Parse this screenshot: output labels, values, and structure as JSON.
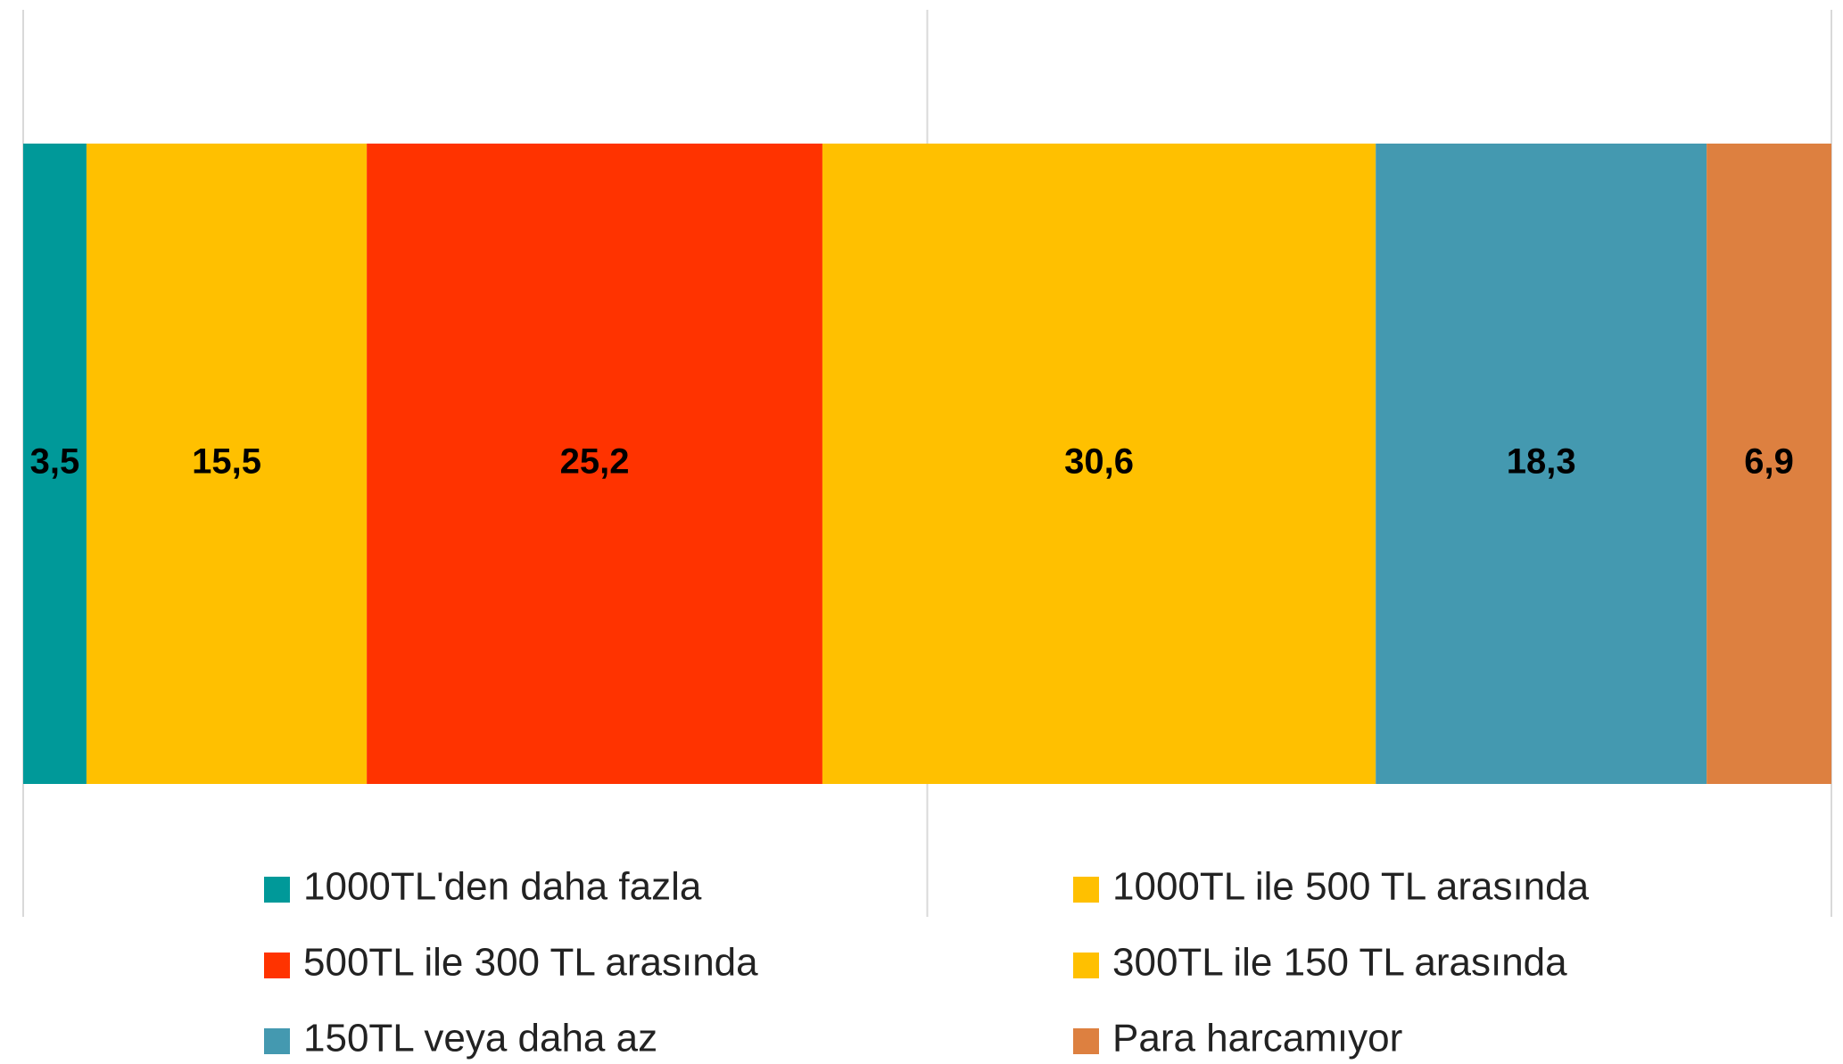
{
  "chart_data": {
    "type": "bar",
    "orientation": "horizontal",
    "stacked": true,
    "xlim": [
      0,
      100
    ],
    "xticks": [
      0,
      50,
      100
    ],
    "grid": true,
    "legend": "bottom",
    "series": [
      {
        "name": "1000TL'den daha fazla",
        "color": "#009999",
        "values": [
          3.5
        ],
        "value_labels": [
          "3,5"
        ]
      },
      {
        "name": "1000TL ile 500 TL arasında",
        "color": "#FFC000",
        "values": [
          15.5
        ],
        "value_labels": [
          "15,5"
        ]
      },
      {
        "name": "500TL ile 300 TL arasında",
        "color": "#FF3300",
        "values": [
          25.2
        ],
        "value_labels": [
          "25,2"
        ]
      },
      {
        "name": "300TL ile 150 TL arasında",
        "color": "#FFC000",
        "values": [
          30.6
        ],
        "value_labels": [
          "30,6"
        ]
      },
      {
        "name": "150TL veya daha az",
        "color": "#4499B0",
        "values": [
          18.3
        ],
        "value_labels": [
          "18,3"
        ]
      },
      {
        "name": "Para harcamıyor",
        "color": "#DD8040",
        "values": [
          6.9
        ],
        "value_labels": [
          "6,9"
        ]
      }
    ]
  }
}
